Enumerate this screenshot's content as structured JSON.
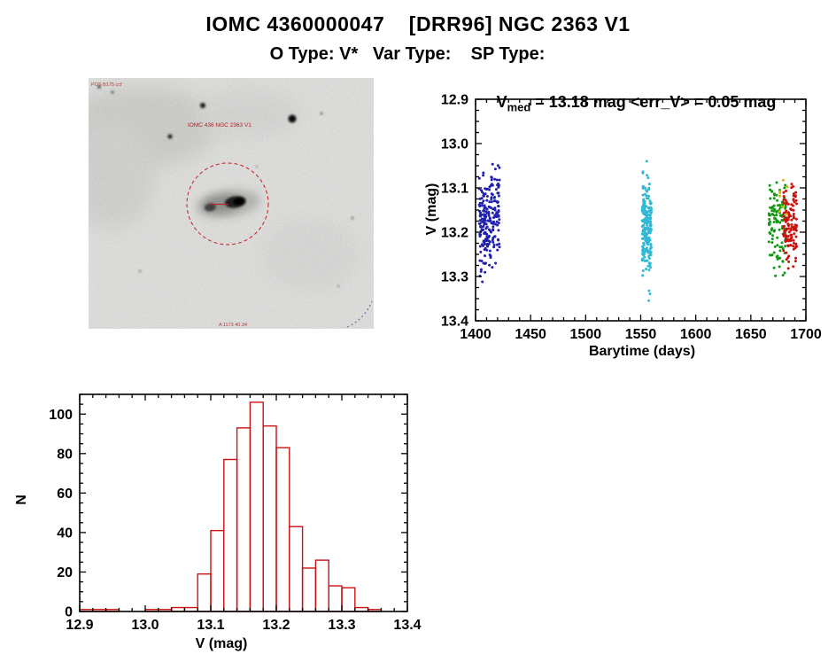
{
  "page": {
    "title": "IOMC 4360000047    [DRR96] NGC 2363 V1",
    "subtitle": "O Type: V*   Var Type:    SP Type:"
  },
  "finding_chart": {
    "ann_top_left": "POS B175 ccf",
    "ann_label": "IOMC 436 NGC 2363 V1",
    "ann_bottom": "A 1173 40.34",
    "marker_color": "#dd2222"
  },
  "chart_data": [
    {
      "id": "lightcurve",
      "type": "scatter",
      "title": "V_med = 13.18 mag <err_V> = 0.05 mag",
      "title_var": "V",
      "title_sub": "med",
      "title_rest": " = 13.18 mag <err_V> = 0.05 mag",
      "xlabel": "Barytime (days)",
      "ylabel": "V (mag)",
      "xlim": [
        1400,
        1700
      ],
      "ylim": [
        12.9,
        13.4
      ],
      "y_inverted": true,
      "xtick_values": [
        1400,
        1450,
        1500,
        1550,
        1600,
        1650,
        1700
      ],
      "xtick_labels": [
        "1400",
        "1450",
        "1500",
        "1550",
        "1600",
        "1650",
        "1700"
      ],
      "ytick_values": [
        12.9,
        13.0,
        13.1,
        13.2,
        13.3,
        13.4
      ],
      "ytick_labels": [
        "12.9",
        "13.0",
        "13.1",
        "13.2",
        "13.3",
        "13.4"
      ],
      "x_minor": 10,
      "y_minor": 0.025,
      "clusters": [
        {
          "name": "epoch1-blue",
          "color": "#2121b0",
          "x_min": 1404,
          "x_max": 1421,
          "columns": 11,
          "count": 230,
          "v_mean": 13.175,
          "v_sigma": 0.052,
          "v_min": 13.04,
          "v_max": 13.33
        },
        {
          "name": "epoch2-cyan",
          "color": "#2fb9d4",
          "x_min": 1552,
          "x_max": 1559,
          "columns": 5,
          "count": 200,
          "v_mean": 13.19,
          "v_sigma": 0.055,
          "v_min": 13.06,
          "v_max": 13.36,
          "extra_points": [
            [
              1555.5,
              13.04
            ]
          ]
        },
        {
          "name": "epoch3-green",
          "color": "#119911",
          "x_min": 1667,
          "x_max": 1681,
          "columns": 7,
          "count": 110,
          "v_mean": 13.18,
          "v_sigma": 0.05,
          "v_min": 13.08,
          "v_max": 13.31
        },
        {
          "name": "epoch3-red",
          "color": "#cc1111",
          "x_min": 1680,
          "x_max": 1691,
          "columns": 6,
          "count": 120,
          "v_mean": 13.18,
          "v_sigma": 0.045,
          "v_min": 13.09,
          "v_max": 13.29
        },
        {
          "name": "epoch3-yellow",
          "color": "#d9b400",
          "x_min": 1676,
          "x_max": 1683,
          "columns": 3,
          "count": 8,
          "v_mean": 13.14,
          "v_sigma": 0.04,
          "v_min": 13.08,
          "v_max": 13.24
        }
      ]
    },
    {
      "id": "histogram",
      "type": "bar",
      "title": "",
      "xlabel": "V (mag)",
      "ylabel": "N",
      "xlim": [
        12.9,
        13.4
      ],
      "ylim": [
        0,
        110
      ],
      "y_inverted": false,
      "xtick_values": [
        12.9,
        13.0,
        13.1,
        13.2,
        13.3,
        13.4
      ],
      "xtick_labels": [
        "12.9",
        "13.0",
        "13.1",
        "13.2",
        "13.3",
        "13.4"
      ],
      "ytick_values": [
        0,
        20,
        40,
        60,
        80,
        100
      ],
      "ytick_labels": [
        "0",
        "20",
        "40",
        "60",
        "80",
        "100"
      ],
      "x_minor": 0.02,
      "y_minor": 5,
      "color": "#cc1111",
      "bin_width": 0.02,
      "bin_left": [
        12.9,
        12.92,
        12.94,
        12.96,
        12.98,
        13.0,
        13.02,
        13.04,
        13.06,
        13.08,
        13.1,
        13.12,
        13.14,
        13.16,
        13.18,
        13.2,
        13.22,
        13.24,
        13.26,
        13.28,
        13.3,
        13.32,
        13.34,
        13.36
      ],
      "counts": [
        1,
        1,
        1,
        0,
        0,
        1,
        1,
        2,
        2,
        19,
        41,
        77,
        93,
        106,
        94,
        83,
        43,
        22,
        26,
        13,
        12,
        2,
        1,
        0
      ]
    }
  ]
}
